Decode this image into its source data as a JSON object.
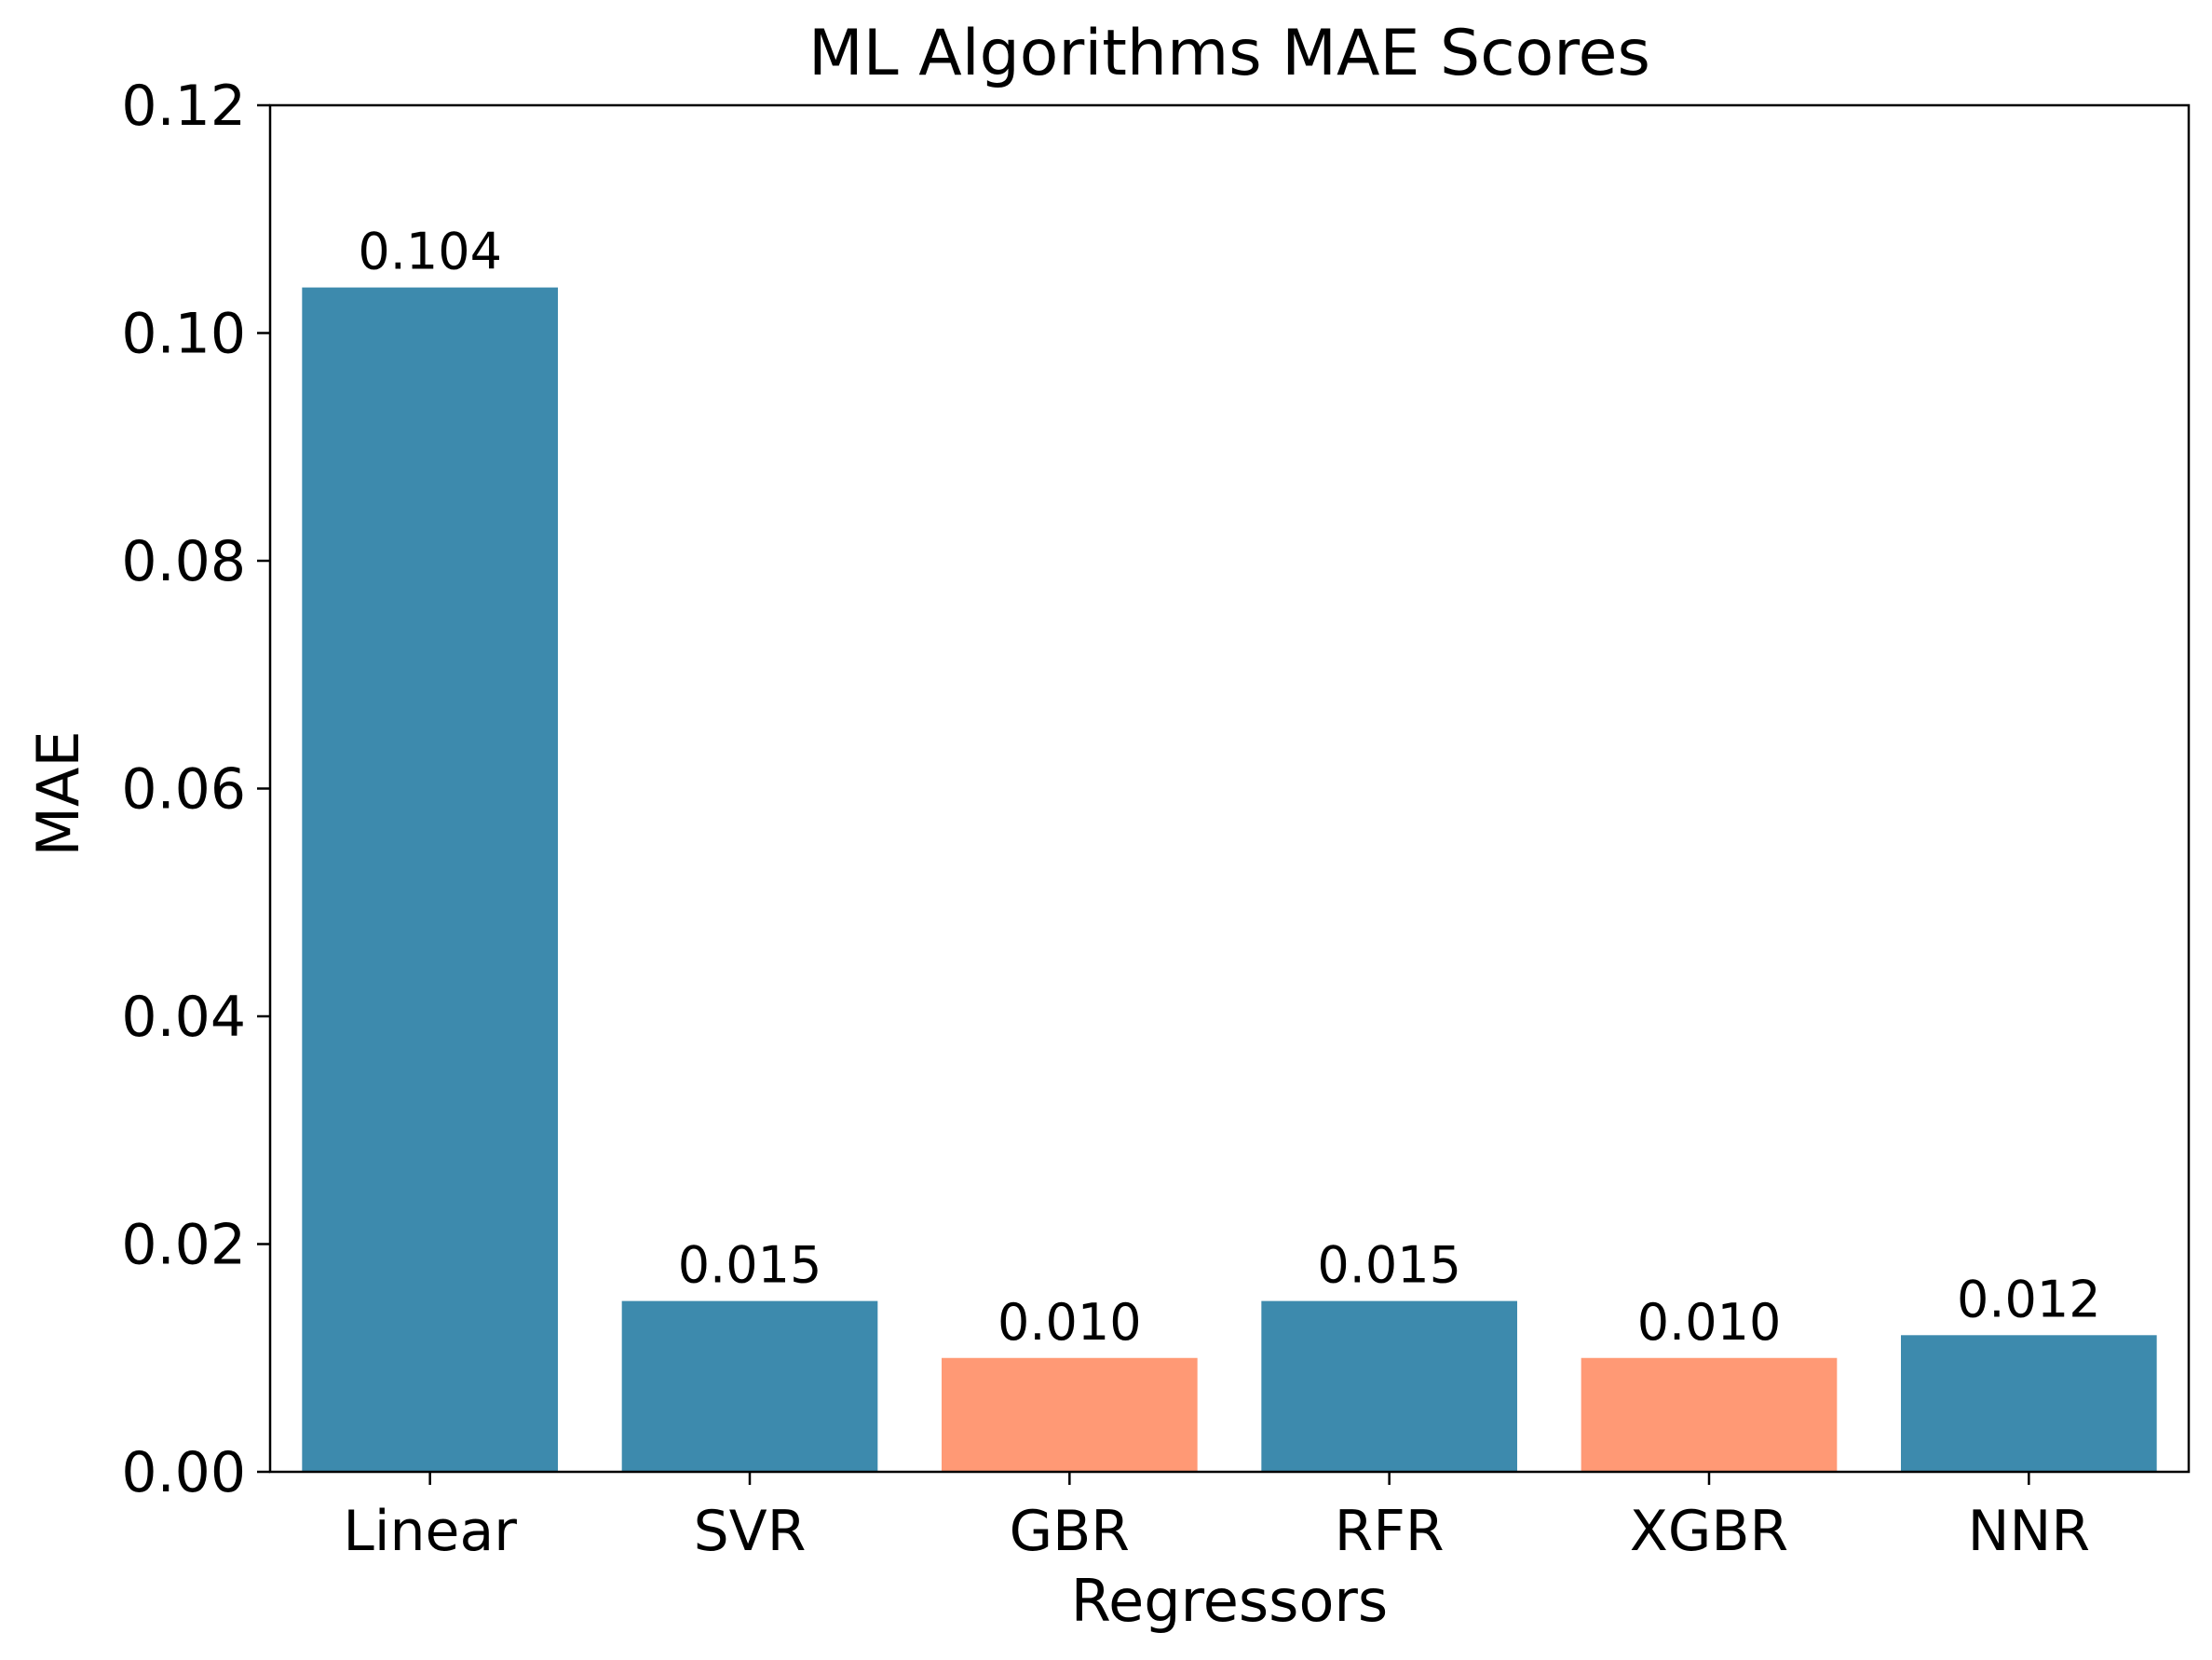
{
  "chart_data": {
    "type": "bar",
    "title": "ML Algorithms MAE Scores",
    "xlabel": "Regressors",
    "ylabel": "MAE",
    "categories": [
      "Linear",
      "SVR",
      "GBR",
      "RFR",
      "XGBR",
      "NNR"
    ],
    "values": [
      0.104,
      0.015,
      0.01,
      0.015,
      0.01,
      0.012
    ],
    "value_labels": [
      "0.104",
      "0.015",
      "0.010",
      "0.015",
      "0.010",
      "0.012"
    ],
    "bar_colors": [
      "#3d8aad",
      "#3d8aad",
      "#ff9975",
      "#3d8aad",
      "#ff9975",
      "#3d8aad"
    ],
    "ylim": [
      0,
      0.12
    ],
    "yticks": [
      0,
      0.02,
      0.04,
      0.06,
      0.08,
      0.1,
      0.12
    ],
    "ytick_labels": [
      "0.00",
      "0.02",
      "0.04",
      "0.06",
      "0.08",
      "0.10",
      "0.12"
    ],
    "grid": false,
    "legend": "none"
  }
}
